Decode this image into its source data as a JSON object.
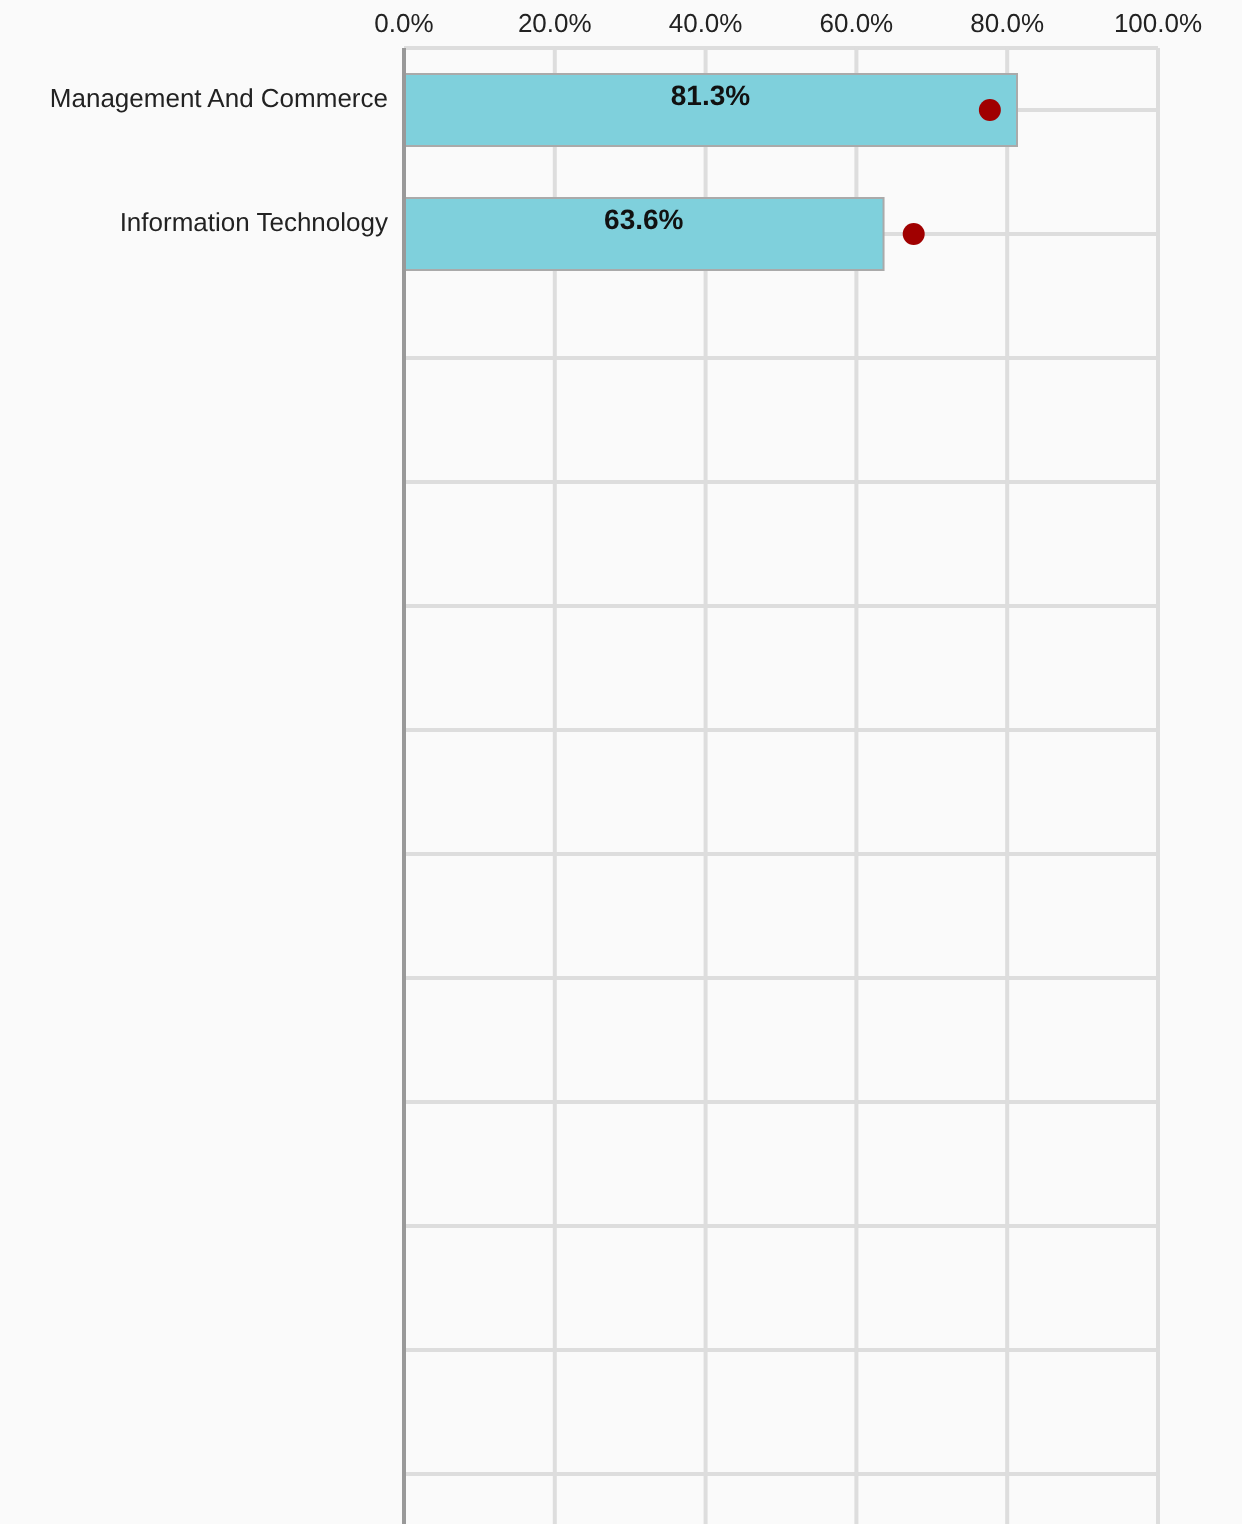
{
  "chart_data": {
    "type": "bar",
    "orientation": "horizontal",
    "categories": [
      "Management And Commerce",
      "Information Technology",
      null,
      null,
      null,
      null,
      null,
      null,
      null,
      null,
      null,
      null
    ],
    "series": [
      {
        "color": "#7fd0dc",
        "values": [
          81.3,
          63.6,
          null,
          null,
          null,
          null,
          null,
          null,
          null,
          null,
          null,
          null
        ],
        "value_labels": [
          "81.3%",
          "63.6%",
          null,
          null,
          null,
          null,
          null,
          null,
          null,
          null,
          null,
          null
        ]
      },
      {
        "type": "scatter",
        "color": "#a00000",
        "marker": "circle",
        "values": [
          77.7,
          67.6,
          null,
          null,
          null,
          null,
          null,
          null,
          null,
          null,
          null,
          null
        ]
      }
    ],
    "xlim": [
      0,
      100
    ],
    "xticks": [
      {
        "value": 0,
        "label": "0.0%"
      },
      {
        "value": 20,
        "label": "20.0%"
      },
      {
        "value": 40,
        "label": "40.0%"
      },
      {
        "value": 60,
        "label": "60.0%"
      },
      {
        "value": 80,
        "label": "80.0%"
      },
      {
        "value": 100,
        "label": "100.0%"
      }
    ],
    "grid": true,
    "legend": false
  }
}
